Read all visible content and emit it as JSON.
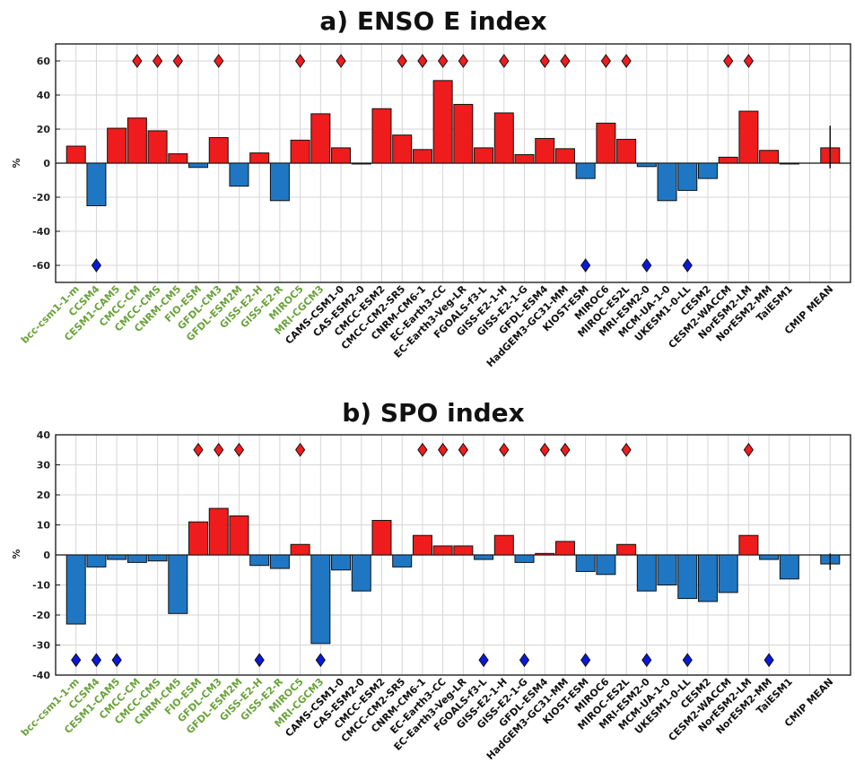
{
  "colors": {
    "positive": "#ee1c1c",
    "negative": "#1f77c4",
    "cmip5_label": "#6aa33a",
    "cmip6_label": "#111111",
    "red_marker": "#ee1c1c",
    "blue_marker": "#0a18d8"
  },
  "chart_data": [
    {
      "type": "bar",
      "title": "a) ENSO E index",
      "ylabel": "%",
      "ylim": [
        -70,
        70
      ],
      "yticks": [
        -60,
        -40,
        -20,
        0,
        20,
        40,
        60
      ],
      "grid": true,
      "categories": [
        "bcc-csm1-1-m",
        "CCSM4",
        "CESM1-CAM5",
        "CMCC-CM",
        "CMCC-CMS",
        "CNRM-CM5",
        "FIO-ESM",
        "GFDL-CM3",
        "GFDL-ESM2M",
        "GISS-E2-H",
        "GISS-E2-R",
        "MIROC5",
        "MRI-CGCM3",
        "CAMS-CSM1-0",
        "CAS-ESM2-0",
        "CMCC-ESM2",
        "CMCC-CM2-SR5",
        "CNRM-CM6-1",
        "EC-Earth3-CC",
        "EC-Earth3-Veg-LR",
        "FGOALS-f3-L",
        "GISS-E2-1-H",
        "GISS-E2-1-G",
        "GFDL-ESM4",
        "HadGEM3-GC31-MM",
        "KIOST-ESM",
        "MIROC6",
        "MIROC-ES2L",
        "MRI-ESM2-0",
        "MCM-UA-1-0",
        "UKESM1-0-LL",
        "CESM2",
        "CESM2-WACCM",
        "NorESM2-LM",
        "NorESM2-MM",
        "TaiESM1",
        "",
        "CMIP MEAN"
      ],
      "values": [
        10,
        -25,
        20.5,
        26.5,
        19,
        5.5,
        -2.5,
        15,
        -13.5,
        6,
        -22,
        13.5,
        29,
        9,
        -0.5,
        32,
        16.5,
        8,
        48.5,
        34.5,
        9,
        29.5,
        5,
        14.5,
        8.5,
        -9,
        23.5,
        14,
        -2,
        -22,
        -16,
        -9,
        3.5,
        30.5,
        7.5,
        -0.5,
        null,
        9
      ],
      "cmip5_count": 13,
      "mean_error": [
        -3,
        22
      ],
      "markers_top": [
        3,
        4,
        5,
        7,
        11,
        13,
        16,
        17,
        18,
        19,
        21,
        23,
        24,
        26,
        27,
        32,
        33
      ],
      "markers_top_value": 60,
      "markers_bottom": [
        1,
        25,
        28,
        30
      ],
      "markers_bottom_value": -60
    },
    {
      "type": "bar",
      "title": "b) SPO index",
      "ylabel": "%",
      "ylim": [
        -40,
        40
      ],
      "yticks": [
        -40,
        -30,
        -20,
        -10,
        0,
        10,
        20,
        30,
        40
      ],
      "grid": true,
      "categories": [
        "bcc-csm1-1-m",
        "CCSM4",
        "CESM1-CAM5",
        "CMCC-CM",
        "CMCC-CMS",
        "CNRM-CM5",
        "FIO-ESM",
        "GFDL-CM3",
        "GFDL-ESM2M",
        "GISS-E2-H",
        "GISS-E2-R",
        "MIROC5",
        "MRI-CGCM3",
        "CAMS-CSM1-0",
        "CAS-ESM2-0",
        "CMCC-ESM2",
        "CMCC-CM2-SR5",
        "CNRM-CM6-1",
        "EC-Earth3-CC",
        "EC-Earth3-Veg-LR",
        "FGOALS-f3-L",
        "GISS-E2-1-H",
        "GISS-E2-1-G",
        "GFDL-ESM4",
        "HadGEM3-GC31-MM",
        "KIOST-ESM",
        "MIROC6",
        "MIROC-ES2L",
        "MRI-ESM2-0",
        "MCM-UA-1-0",
        "UKESM1-0-LL",
        "CESM2",
        "CESM2-WACCM",
        "NorESM2-LM",
        "NorESM2-MM",
        "TaiESM1",
        "",
        "CMIP MEAN"
      ],
      "values": [
        -23,
        -4,
        -1.5,
        -2.5,
        -2,
        -19.5,
        11,
        15.5,
        13,
        -3.5,
        -4.5,
        3.5,
        -29.5,
        -5,
        -12,
        11.5,
        -4,
        6.5,
        3,
        3,
        -1.5,
        6.5,
        -2.5,
        0.5,
        4.5,
        -5.5,
        -6.5,
        3.5,
        -12,
        -10,
        -14.5,
        -15.5,
        -12.5,
        6.5,
        -1.5,
        -8,
        null,
        -3
      ],
      "cmip5_count": 13,
      "mean_error": [
        -5,
        0.5
      ],
      "markers_top": [
        6,
        7,
        8,
        11,
        17,
        18,
        19,
        21,
        23,
        24,
        27,
        33
      ],
      "markers_top_value": 35,
      "markers_bottom": [
        0,
        1,
        2,
        9,
        12,
        20,
        22,
        25,
        28,
        30,
        34
      ],
      "markers_bottom_value": -35
    }
  ]
}
